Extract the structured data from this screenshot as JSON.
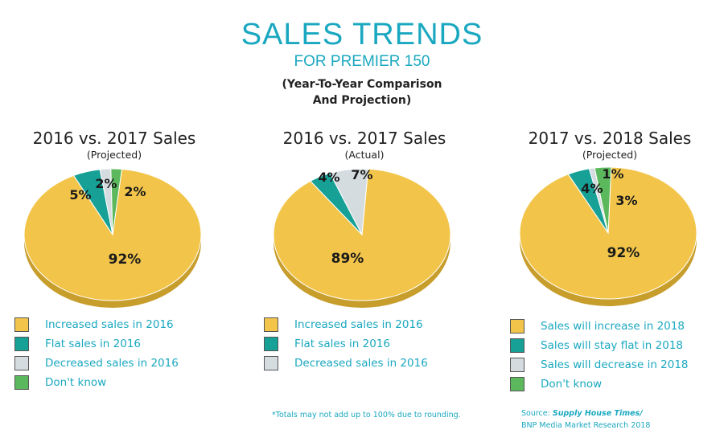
{
  "header": {
    "title": "SALES TRENDS",
    "subtitle": "FOR PREMIER 150",
    "note_line1": "(Year-To-Year Comparison",
    "note_line2": "And Projection)"
  },
  "colors": {
    "gold": "#f2c54a",
    "gold_dark": "#c79d2c",
    "teal": "#16a096",
    "teal_dark": "#0f736d",
    "gray": "#d5dce0",
    "gray_dark": "#a8b0b4",
    "green": "#5cb85c",
    "green_dark": "#3f8a3f",
    "accent_text": "#1aa8c0"
  },
  "chart_data": [
    {
      "type": "pie",
      "title": "2016 vs. 2017 Sales",
      "subtitle": "(Projected)",
      "slices": [
        {
          "label": "Increased sales in 2016",
          "value": 92,
          "display": "92%",
          "color": "gold"
        },
        {
          "label": "Flat sales in 2016",
          "value": 5,
          "display": "5%",
          "color": "teal"
        },
        {
          "label": "Decreased sales in 2016",
          "value": 2,
          "display": "2%",
          "color": "gray"
        },
        {
          "label": "Don't know",
          "value": 2,
          "display": "2%",
          "color": "green"
        }
      ]
    },
    {
      "type": "pie",
      "title": "2016 vs. 2017 Sales",
      "subtitle": "(Actual)",
      "slices": [
        {
          "label": "Increased sales in 2016",
          "value": 89,
          "display": "89%",
          "color": "gold"
        },
        {
          "label": "Flat sales in 2016",
          "value": 4,
          "display": "4%",
          "color": "teal"
        },
        {
          "label": "Decreased sales in 2016",
          "value": 7,
          "display": "7%",
          "color": "gray"
        }
      ]
    },
    {
      "type": "pie",
      "title": "2017 vs. 2018 Sales",
      "subtitle": "(Projected)",
      "slices": [
        {
          "label": "Sales will increase in 2018",
          "value": 92,
          "display": "92%",
          "color": "gold"
        },
        {
          "label": "Sales will stay flat in 2018",
          "value": 4,
          "display": "4%",
          "color": "teal"
        },
        {
          "label": "Sales will decrease in 2018",
          "value": 1,
          "display": "1%",
          "color": "gray"
        },
        {
          "label": "Don't know",
          "value": 3,
          "display": "3%",
          "color": "green"
        }
      ]
    }
  ],
  "footnote": "*Totals may not add up to 100% due to rounding.",
  "source": {
    "prefix": "Source: ",
    "publication": "Supply House Times/",
    "line2": "BNP Media Market Research 2018"
  }
}
